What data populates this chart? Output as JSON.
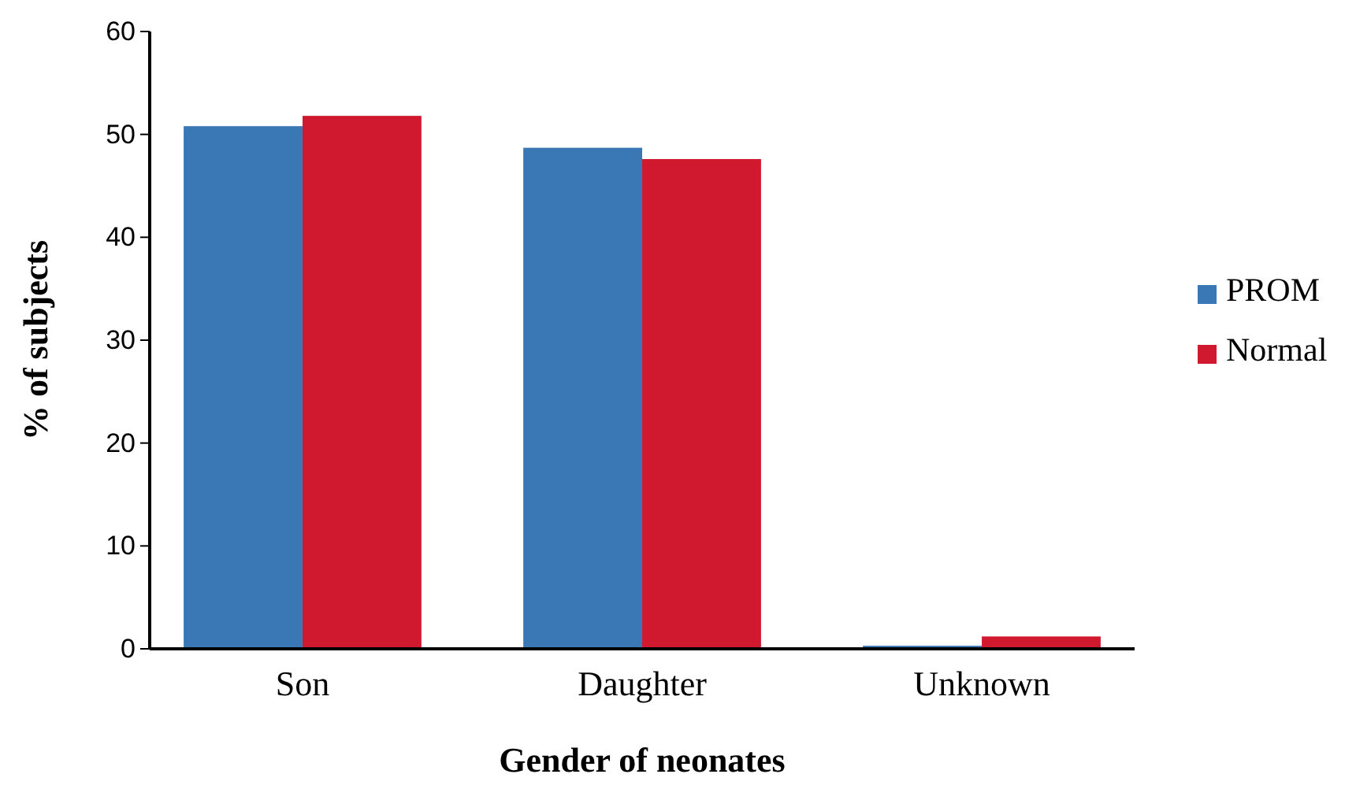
{
  "chart_data": {
    "type": "bar",
    "xlabel": "Gender of neonates",
    "ylabel": "% of subjects",
    "categories": [
      "Son",
      "Daughter",
      "Unknown"
    ],
    "series": [
      {
        "name": "PROM",
        "color": "#3a78b5",
        "values": [
          50.8,
          48.7,
          0.3
        ]
      },
      {
        "name": "Normal",
        "color": "#d0182e",
        "values": [
          51.8,
          47.6,
          1.2
        ]
      }
    ],
    "ylim": [
      0,
      60
    ],
    "yticks": [
      0,
      10,
      20,
      30,
      40,
      50,
      60
    ],
    "legend": "right",
    "grid": false
  }
}
